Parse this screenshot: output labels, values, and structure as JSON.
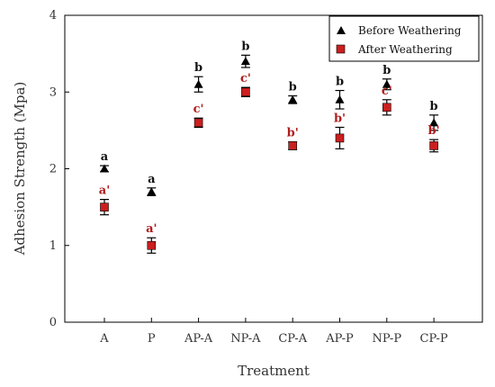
{
  "chart_data": {
    "type": "scatter",
    "title": "",
    "xlabel": "Treatment",
    "ylabel": "Adhesion Strength (Mpa)",
    "ylim": [
      0,
      4
    ],
    "yticks": [
      "0",
      "1",
      "2",
      "3",
      "4"
    ],
    "categories": [
      "A",
      "P",
      "AP-A",
      "NP-A",
      "CP-A",
      "AP-P",
      "NP-P",
      "CP-P"
    ],
    "grid": false,
    "legend_position": "top-right",
    "series": [
      {
        "name": "Before Weathering",
        "marker": "triangle",
        "color": "#000000",
        "label_color": "#111111",
        "values": [
          2.0,
          1.7,
          3.1,
          3.4,
          2.9,
          2.9,
          3.1,
          2.6
        ],
        "errors": [
          0.04,
          0.05,
          0.1,
          0.08,
          0.05,
          0.12,
          0.07,
          0.1
        ],
        "labels": [
          "a",
          "a",
          "b",
          "b",
          "b",
          "b",
          "b",
          "b"
        ]
      },
      {
        "name": "After Weathering",
        "marker": "square",
        "color": "#cc1f1f",
        "label_color": "#b01e1e",
        "values": [
          1.5,
          1.0,
          2.6,
          3.0,
          2.3,
          2.4,
          2.8,
          2.3
        ],
        "errors": [
          0.1,
          0.1,
          0.06,
          0.06,
          0.05,
          0.14,
          0.1,
          0.08
        ],
        "labels": [
          "a'",
          "a'",
          "c'",
          "c'",
          "b'",
          "b'",
          "c'",
          "b'"
        ]
      }
    ]
  }
}
